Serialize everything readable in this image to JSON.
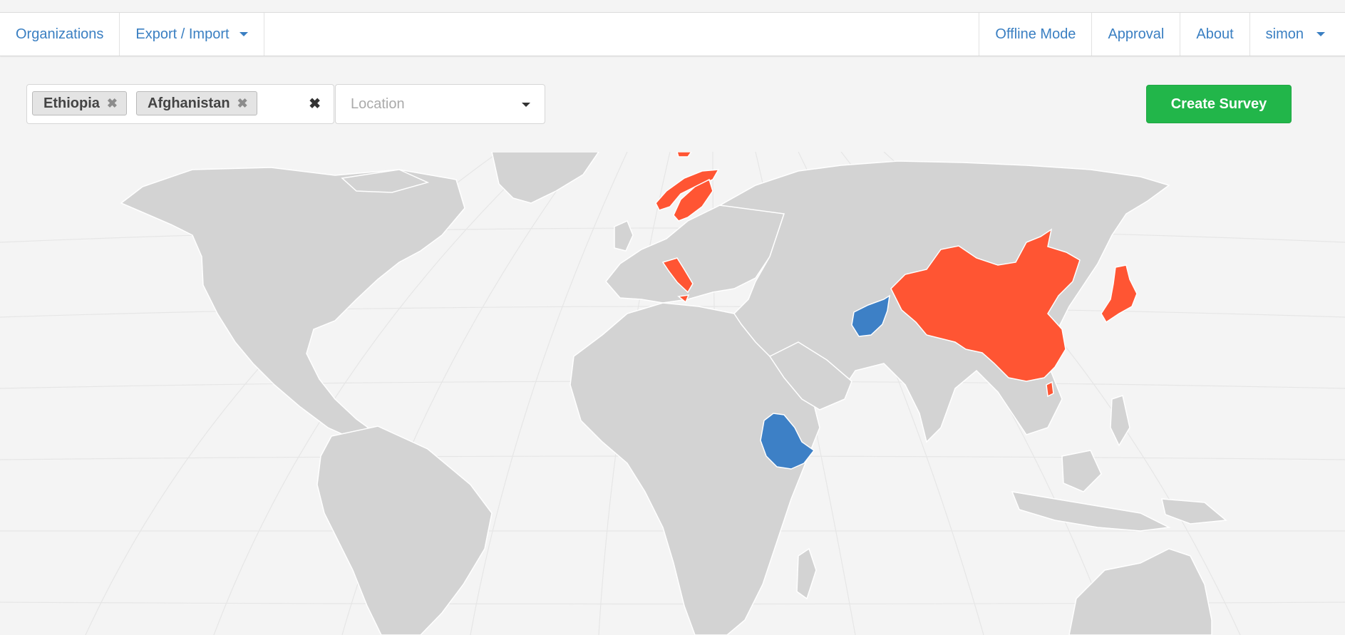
{
  "nav": {
    "left": [
      {
        "label": "Organizations",
        "has_caret": false
      },
      {
        "label": "Export / Import",
        "has_caret": true
      }
    ],
    "right": [
      {
        "label": "Offline Mode",
        "has_caret": false
      },
      {
        "label": "Approval",
        "has_caret": false
      },
      {
        "label": "About",
        "has_caret": false
      },
      {
        "label": "simon",
        "has_caret": true
      }
    ]
  },
  "filters": {
    "selected_countries": [
      "Ethiopia",
      "Afghanistan"
    ],
    "remove_icon": "times-icon",
    "clear_icon": "times-icon",
    "location_placeholder": "Location"
  },
  "actions": {
    "create_survey_label": "Create Survey"
  },
  "map": {
    "colors": {
      "land": "#d3d3d3",
      "highlighted": "#ff5533",
      "selected": "#3d80c6",
      "graticule": "#e6e6e6"
    },
    "selected_countries": [
      "Ethiopia",
      "Afghanistan"
    ],
    "highlighted_countries": [
      "China",
      "Japan",
      "Norway",
      "Sweden",
      "Italy"
    ]
  }
}
